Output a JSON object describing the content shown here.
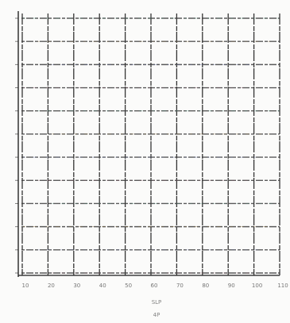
{
  "chart_data": {
    "type": "table",
    "title": "",
    "xlabel": "SLP",
    "ylabel": "",
    "footer_label": "4P",
    "x_ticks": [
      "10",
      "20",
      "30",
      "40",
      "50",
      "60",
      "70",
      "80",
      "90",
      "100",
      "110"
    ],
    "y_ticks": [
      "",
      "",
      "",
      "",
      "",
      "",
      "",
      "",
      "",
      "",
      "",
      ""
    ],
    "grid": true,
    "colors": {
      "axis": "#2b2b2b",
      "vertical_grid": "#1f1f1f",
      "horizontal_grid": "#3d3d3d",
      "accent_dashes": [
        "#4f8f7a",
        "#8b6f3e",
        "#5f6b9a",
        "#8a5c6a"
      ]
    }
  }
}
